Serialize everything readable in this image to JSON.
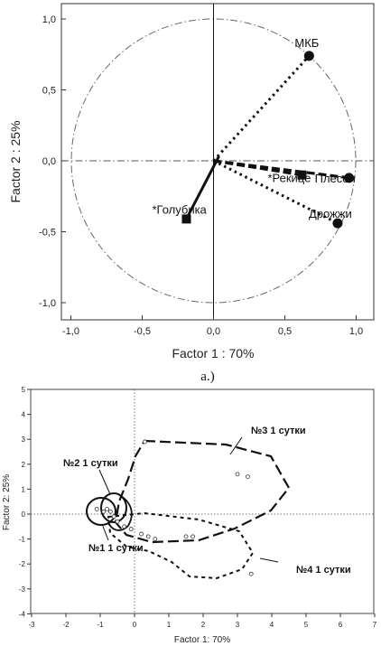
{
  "chart_data": [
    {
      "type": "scatter",
      "title": "",
      "xlabel": "Factor 1 : 70%",
      "ylabel": "Factor 2 : 25%",
      "xlim": [
        -1.05,
        1.1
      ],
      "ylim": [
        -1.13,
        1.13
      ],
      "x_ticks": [
        "-1,0",
        "-0,5",
        "0,0",
        "0,5",
        "1,0"
      ],
      "y_ticks": [
        "1,0",
        "0,5",
        "0,0",
        "-0,5",
        "-1,0"
      ],
      "unit_circle": true,
      "points": [
        {
          "label": "МКБ",
          "x": 0.67,
          "y": 0.74,
          "marker": "circle",
          "line": "dotted"
        },
        {
          "label": "*Рекице",
          "x": 0.62,
          "y": -0.1,
          "marker": "square",
          "line": "dashed"
        },
        {
          "label": "Плесен",
          "x": 0.95,
          "y": -0.12,
          "marker": "circle",
          "line": "dashed"
        },
        {
          "label": "Дрожжи",
          "x": 0.87,
          "y": -0.44,
          "marker": "circle",
          "line": "dotted"
        },
        {
          "label": "*Голубика",
          "x": -0.19,
          "y": -0.41,
          "marker": "square",
          "line": "solid"
        }
      ],
      "caption": "a.)"
    },
    {
      "type": "scatter",
      "title": "",
      "xlabel": "Factor 1: 70%",
      "ylabel": "Factor 2: 25%",
      "xlim": [
        -3,
        7
      ],
      "ylim": [
        -4,
        5
      ],
      "x_ticks": [
        "-3",
        "-2",
        "-1",
        "0",
        "1",
        "2",
        "3",
        "4",
        "5",
        "6",
        "7"
      ],
      "y_ticks": [
        "5",
        "4",
        "3",
        "2",
        "1",
        "0",
        "-1",
        "-2",
        "-3",
        "-4"
      ],
      "groups": [
        {
          "label": "№3 1 сутки",
          "outline": "long-dash"
        },
        {
          "label": "№2 1 сутки",
          "outline": "solid"
        },
        {
          "label": "№1 1 сутки",
          "outline": "solid"
        },
        {
          "label": "№4 1 сутки",
          "outline": "short-dash"
        }
      ],
      "points": [
        {
          "x": 0.3,
          "y": 2.9
        },
        {
          "x": 3.0,
          "y": 1.6
        },
        {
          "x": 3.3,
          "y": 1.5
        },
        {
          "x": -1.1,
          "y": 0.2
        },
        {
          "x": -0.9,
          "y": 0.1
        },
        {
          "x": -0.8,
          "y": 0.2
        },
        {
          "x": -0.7,
          "y": 0.1
        },
        {
          "x": -0.6,
          "y": -0.1
        },
        {
          "x": -0.5,
          "y": -0.3
        },
        {
          "x": -0.3,
          "y": -0.5
        },
        {
          "x": -0.1,
          "y": -0.6
        },
        {
          "x": 0.2,
          "y": -0.8
        },
        {
          "x": 0.4,
          "y": -0.9
        },
        {
          "x": 0.6,
          "y": -1.0
        },
        {
          "x": 1.5,
          "y": -0.9
        },
        {
          "x": 1.7,
          "y": -0.9
        },
        {
          "x": 3.4,
          "y": -2.4
        }
      ]
    }
  ]
}
